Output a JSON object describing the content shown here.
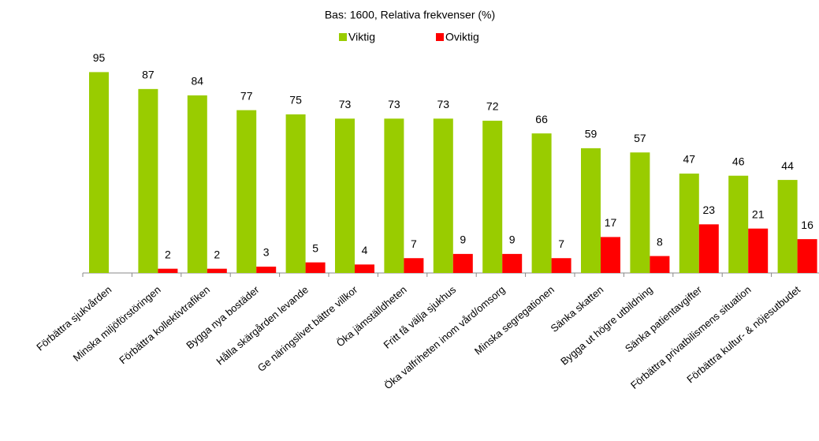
{
  "chart_data": {
    "type": "bar",
    "title": "Bas: 1600, Relativa frekvenser (%)",
    "categories": [
      "Förbättra sjukvården",
      "Minska miljöförstöringen",
      "Förbättra kollektivtrafiken",
      "Bygga nya bostäder",
      "Hålla skärgården levande",
      "Ge näringslivet bättre villkor",
      "Öka jämställdheten",
      "Fritt få välja sjukhus",
      "Öka valfriheten inom vård/omsorg",
      "Minska segregationen",
      "Sänka skatten",
      "Bygga ut högre utbildning",
      "Sänka patientavgifter",
      "Förbättra privatbilismens situation",
      "Förbättra kultur- & nöjesutbudet"
    ],
    "series": [
      {
        "name": "Viktig",
        "color": "#99cc00",
        "values": [
          95,
          87,
          84,
          77,
          75,
          73,
          73,
          73,
          72,
          66,
          59,
          57,
          47,
          46,
          44
        ]
      },
      {
        "name": "Oviktig",
        "color": "#ff0000",
        "values": [
          null,
          2,
          2,
          3,
          5,
          4,
          7,
          9,
          9,
          7,
          17,
          8,
          23,
          21,
          16
        ]
      }
    ],
    "ylim": [
      0,
      100
    ],
    "legend": "top"
  }
}
